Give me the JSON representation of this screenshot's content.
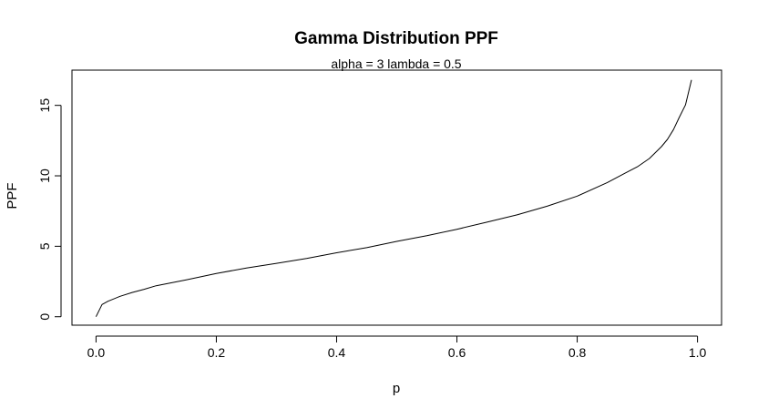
{
  "chart_data": {
    "type": "line",
    "title": "Gamma Distribution PPF",
    "subtitle": "alpha = 3  lambda = 0.5",
    "xlabel": "p",
    "ylabel": "PPF",
    "xlim": [
      -0.04,
      1.04
    ],
    "ylim": [
      -0.6,
      17.5
    ],
    "x_ticks": [
      0,
      0.2,
      0.4,
      0.6,
      0.8,
      1
    ],
    "x_tick_labels": [
      "0.0",
      "0.2",
      "0.4",
      "0.6",
      "0.8",
      "1.0"
    ],
    "y_ticks": [
      0,
      5,
      10,
      15
    ],
    "y_tick_labels": [
      "0",
      "5",
      "10",
      "15"
    ],
    "grid": false,
    "series": [
      {
        "x": [
          0.0,
          0.01,
          0.02,
          0.04,
          0.06,
          0.08,
          0.1,
          0.15,
          0.2,
          0.25,
          0.3,
          0.35,
          0.4,
          0.45,
          0.5,
          0.55,
          0.6,
          0.65,
          0.7,
          0.75,
          0.8,
          0.85,
          0.88,
          0.9,
          0.92,
          0.94,
          0.95,
          0.96,
          0.97,
          0.98,
          0.99
        ],
        "y": [
          0.0,
          0.87,
          1.1,
          1.45,
          1.72,
          1.95,
          2.2,
          2.61,
          3.07,
          3.45,
          3.79,
          4.14,
          4.54,
          4.9,
          5.35,
          5.75,
          6.21,
          6.71,
          7.23,
          7.84,
          8.56,
          9.52,
          10.2,
          10.64,
          11.23,
          12.07,
          12.59,
          13.28,
          14.18,
          15.03,
          16.81
        ]
      }
    ]
  }
}
